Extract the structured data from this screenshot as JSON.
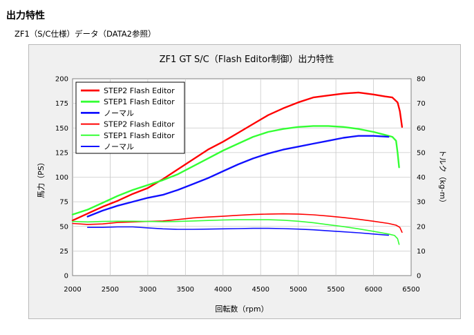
{
  "page": {
    "heading": "出力特性",
    "subheading": "ZF1（S/C仕様）データ（DATA2参照）"
  },
  "chart_data": {
    "type": "line",
    "title": "ZF1 GT S/C（Flash Editor制御）出力特性",
    "xlabel": "回転数（rpm）",
    "ylabel": "馬力（PS）",
    "y2label": "トルク（kg-m）",
    "xlim": [
      2000,
      6500
    ],
    "ylim": [
      0,
      200
    ],
    "y2lim": [
      0,
      80
    ],
    "xticks": [
      "2000",
      "2500",
      "3000",
      "3500",
      "4000",
      "4500",
      "5000",
      "5500",
      "6000",
      "6500"
    ],
    "yticks": [
      "0",
      "25",
      "50",
      "75",
      "100",
      "125",
      "150",
      "175",
      "200"
    ],
    "y2ticks": [
      "0",
      "10",
      "20",
      "30",
      "40",
      "50",
      "60",
      "70",
      "80"
    ],
    "legend_position": "top-left",
    "legend": [
      "STEP2 Flash Editor",
      "STEP1 Flash Editor",
      "ノーマル",
      "STEP2 Flash Editor",
      "STEP1 Flash Editor",
      "ノーマル"
    ],
    "series": [
      {
        "name": "STEP2 Flash Editor",
        "kind": "power",
        "axis": "left",
        "color": "#ff0000",
        "width": 2.4,
        "x": [
          2000,
          2200,
          2400,
          2600,
          2800,
          3000,
          3200,
          3400,
          3600,
          3800,
          4000,
          4200,
          4400,
          4600,
          4800,
          5000,
          5200,
          5400,
          5600,
          5800,
          6000,
          6150,
          6250,
          6320,
          6350,
          6380
        ],
        "y": [
          56,
          63,
          70,
          76,
          83,
          89,
          98,
          108,
          118,
          128,
          136,
          145,
          154,
          163,
          170,
          176,
          181,
          183,
          185,
          186,
          184,
          182,
          181,
          176,
          167,
          151
        ]
      },
      {
        "name": "STEP1 Flash Editor",
        "kind": "power",
        "axis": "left",
        "color": "#33ff33",
        "width": 2.4,
        "x": [
          2000,
          2200,
          2400,
          2600,
          2800,
          3000,
          3200,
          3400,
          3600,
          3800,
          4000,
          4200,
          4400,
          4600,
          4800,
          5000,
          5200,
          5400,
          5600,
          5800,
          6000,
          6150,
          6250,
          6300,
          6320,
          6340
        ],
        "y": [
          62,
          67,
          74,
          81,
          87,
          92,
          97,
          103,
          111,
          119,
          127,
          134,
          141,
          146,
          149,
          151,
          152,
          152,
          151,
          149,
          146,
          143,
          141,
          137,
          125,
          110
        ]
      },
      {
        "name": "ノーマル",
        "kind": "power",
        "axis": "left",
        "color": "#1010ff",
        "width": 2.4,
        "x": [
          2200,
          2400,
          2600,
          2800,
          3000,
          3200,
          3400,
          3600,
          3800,
          4000,
          4200,
          4400,
          4600,
          4800,
          5000,
          5200,
          5400,
          5600,
          5800,
          6000,
          6200
        ],
        "y": [
          60,
          66,
          71,
          75,
          79,
          82,
          87,
          93,
          99,
          106,
          113,
          119,
          124,
          128,
          131,
          134,
          137,
          140,
          142,
          142,
          141
        ]
      },
      {
        "name": "STEP2 Flash Editor",
        "kind": "torque",
        "axis": "right",
        "color": "#ff0000",
        "width": 1.6,
        "x": [
          2000,
          2200,
          2400,
          2600,
          2800,
          3000,
          3200,
          3400,
          3600,
          3800,
          4000,
          4200,
          4400,
          4600,
          4800,
          5000,
          5200,
          5400,
          5600,
          5800,
          6000,
          6200,
          6300,
          6350,
          6380
        ],
        "y": [
          21.2,
          20.8,
          21.0,
          21.6,
          21.8,
          22.0,
          22.2,
          22.8,
          23.4,
          23.8,
          24.1,
          24.5,
          24.8,
          25.0,
          25.1,
          25.0,
          24.7,
          24.2,
          23.6,
          22.9,
          22.1,
          21.2,
          20.5,
          19.6,
          17.6
        ]
      },
      {
        "name": "STEP1 Flash Editor",
        "kind": "torque",
        "axis": "right",
        "color": "#33ff33",
        "width": 1.6,
        "x": [
          2000,
          2200,
          2400,
          2600,
          2800,
          3000,
          3200,
          3400,
          3600,
          3800,
          4000,
          4200,
          4400,
          4600,
          4800,
          5000,
          5200,
          5400,
          5600,
          5800,
          6000,
          6200,
          6280,
          6320,
          6340
        ],
        "y": [
          22.0,
          21.8,
          22.0,
          22.1,
          22.1,
          22.0,
          21.9,
          22.0,
          22.2,
          22.4,
          22.6,
          22.7,
          22.7,
          22.7,
          22.5,
          22.1,
          21.5,
          20.7,
          19.9,
          19.0,
          18.0,
          16.9,
          16.3,
          15.0,
          12.7
        ]
      },
      {
        "name": "ノーマル",
        "kind": "torque",
        "axis": "right",
        "color": "#1010ff",
        "width": 1.6,
        "x": [
          2200,
          2400,
          2600,
          2800,
          3000,
          3200,
          3400,
          3600,
          3800,
          4000,
          4200,
          4400,
          4600,
          4800,
          5000,
          5200,
          5400,
          5600,
          5800,
          6000,
          6200
        ],
        "y": [
          19.6,
          19.6,
          19.8,
          19.8,
          19.4,
          19.0,
          18.8,
          18.8,
          18.9,
          19.0,
          19.1,
          19.2,
          19.2,
          19.1,
          18.9,
          18.6,
          18.2,
          17.8,
          17.4,
          16.9,
          16.4
        ]
      }
    ]
  }
}
